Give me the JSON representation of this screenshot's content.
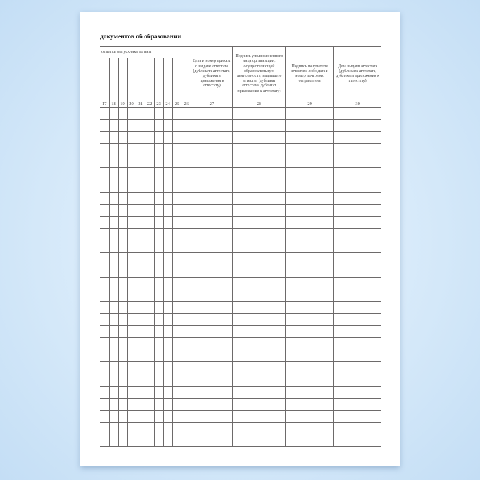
{
  "title": "документов об образовании",
  "group_header": "отметки выпускника по ним",
  "column_headers": [
    "Дата и номер приказа о выдаче аттестата (дубликата аттестата, дубликата приложения к аттестату)",
    "Подпись уполномоченного лица организации, осуществляющей образовательную деятельность, выдавшего аттестат (дубликат аттестата, дубликат приложения к аттестату)",
    "Подпись получателя аттестата либо дата и номер почтового отправления",
    "Дата выдачи аттестата (дубликата аттестата, дубликата приложения к аттестату)"
  ],
  "column_numbers": [
    "17",
    "18",
    "19",
    "20",
    "21",
    "22",
    "23",
    "24",
    "25",
    "26",
    "27",
    "28",
    "29",
    "30"
  ],
  "blank_rows": 28
}
